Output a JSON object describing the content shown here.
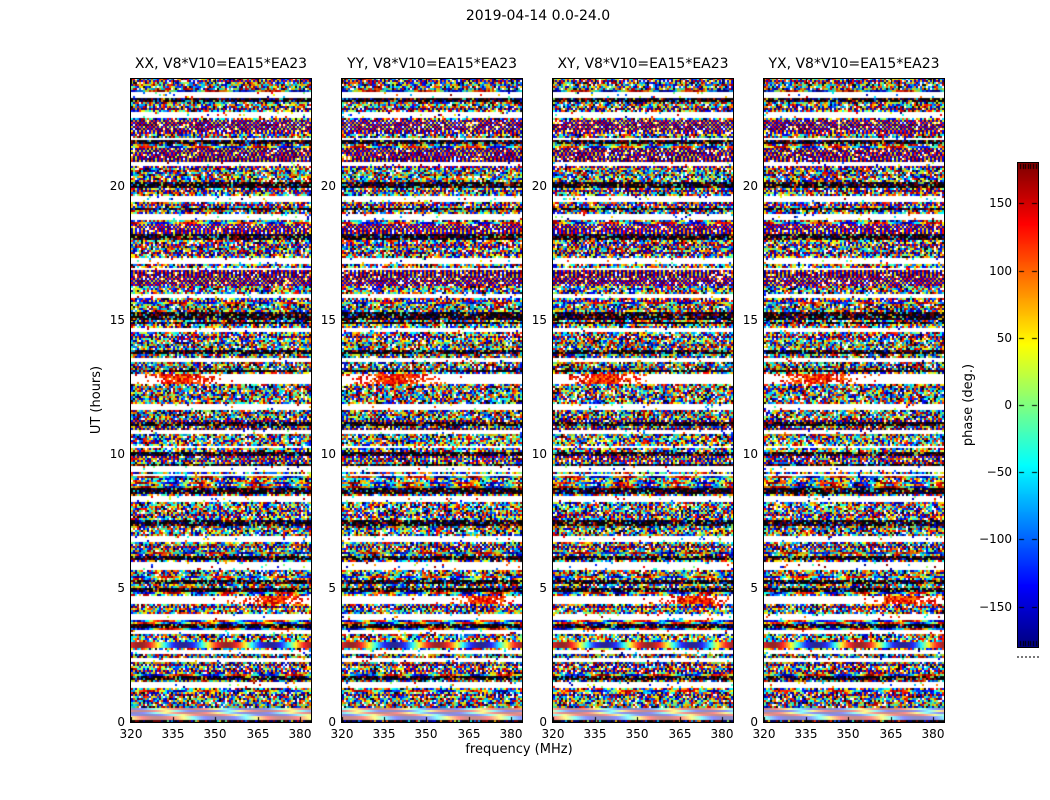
{
  "figure": {
    "suptitle": "2019-04-14 0.0-24.0",
    "xlabel": "frequency (MHz)",
    "ylabel": "UT (hours)",
    "colorbar_label": "phase (deg.)",
    "colors": {
      "background": "#ffffff",
      "text": "#000000"
    }
  },
  "chart_data": {
    "type": "heatmap",
    "title": "2019-04-14 0.0-24.0",
    "description": "Visibility phase vs frequency and time for baseline V8*V10=EA15*EA23; four polarization panels of random-looking phase noise with time-aligned flagged (white) and dark bands.",
    "panels": [
      {
        "pol": "XX",
        "title": "XX, V8*V10=EA15*EA23"
      },
      {
        "pol": "YY",
        "title": "YY, V8*V10=EA15*EA23"
      },
      {
        "pol": "XY",
        "title": "XY, V8*V10=EA15*EA23"
      },
      {
        "pol": "YX",
        "title": "YX, V8*V10=EA15*EA23"
      }
    ],
    "x_axis": {
      "label": "frequency (MHz)",
      "ticks": [
        320,
        335,
        350,
        365,
        380
      ],
      "range": [
        320,
        384
      ]
    },
    "y_axis": {
      "label": "UT (hours)",
      "ticks": [
        0,
        5,
        10,
        15,
        20
      ],
      "range": [
        0,
        24
      ]
    },
    "colorbar": {
      "label": "phase (deg.)",
      "ticks": [
        150,
        100,
        50,
        0,
        -50,
        -100,
        -150
      ],
      "range": [
        -180,
        180
      ],
      "colormap": "jet"
    },
    "bands": [
      {
        "ut": 23.4,
        "h": 0.1,
        "type": "white"
      },
      {
        "ut": 23.18,
        "h": 0.08,
        "type": "dark"
      },
      {
        "ut": 22.6,
        "h": 0.12,
        "type": "white"
      },
      {
        "ut": 22.2,
        "h": 0.4,
        "type": "fine"
      },
      {
        "ut": 21.62,
        "h": 0.1,
        "type": "dark"
      },
      {
        "ut": 21.15,
        "h": 0.45,
        "type": "fine"
      },
      {
        "ut": 20.8,
        "h": 0.12,
        "type": "white"
      },
      {
        "ut": 20.0,
        "h": 0.14,
        "type": "dark"
      },
      {
        "ut": 19.5,
        "h": 0.12,
        "type": "white"
      },
      {
        "ut": 18.8,
        "h": 0.12,
        "type": "white"
      },
      {
        "ut": 18.35,
        "h": 0.3,
        "type": "fine"
      },
      {
        "ut": 18.08,
        "h": 0.1,
        "type": "dark"
      },
      {
        "ut": 17.2,
        "h": 0.12,
        "type": "white"
      },
      {
        "ut": 16.55,
        "h": 0.5,
        "type": "fine"
      },
      {
        "ut": 15.9,
        "h": 0.1,
        "type": "white"
      },
      {
        "ut": 15.1,
        "h": 0.22,
        "type": "dark"
      },
      {
        "ut": 14.6,
        "h": 0.12,
        "type": "white"
      },
      {
        "ut": 13.8,
        "h": 0.12,
        "type": "dark"
      },
      {
        "ut": 13.5,
        "h": 0.12,
        "type": "white"
      },
      {
        "ut": 12.78,
        "h": 0.26,
        "type": "streak-left"
      },
      {
        "ut": 11.72,
        "h": 0.14,
        "type": "white"
      },
      {
        "ut": 11.1,
        "h": 0.08,
        "type": "dark"
      },
      {
        "ut": 10.82,
        "h": 0.08,
        "type": "white"
      },
      {
        "ut": 9.97,
        "h": 0.08,
        "type": "dark"
      },
      {
        "ut": 9.4,
        "h": 0.14,
        "type": "white"
      },
      {
        "ut": 8.66,
        "h": 0.08,
        "type": "dark"
      },
      {
        "ut": 8.3,
        "h": 0.14,
        "type": "white"
      },
      {
        "ut": 7.4,
        "h": 0.14,
        "type": "dark"
      },
      {
        "ut": 6.8,
        "h": 0.14,
        "type": "white"
      },
      {
        "ut": 6.12,
        "h": 0.08,
        "type": "dark"
      },
      {
        "ut": 5.86,
        "h": 0.12,
        "type": "white"
      },
      {
        "ut": 5.2,
        "h": 0.1,
        "type": "dark"
      },
      {
        "ut": 4.9,
        "h": 0.1,
        "type": "dark"
      },
      {
        "ut": 4.55,
        "h": 0.24,
        "type": "streak-right"
      },
      {
        "ut": 3.92,
        "h": 0.12,
        "type": "white"
      },
      {
        "ut": 3.6,
        "h": 0.08,
        "type": "dark"
      },
      {
        "ut": 3.36,
        "h": 0.12,
        "type": "white"
      },
      {
        "ut": 2.87,
        "h": 0.16,
        "type": "rainbow"
      },
      {
        "ut": 2.61,
        "h": 0.1,
        "type": "white"
      },
      {
        "ut": 2.31,
        "h": 0.12,
        "type": "white"
      },
      {
        "ut": 1.64,
        "h": 0.08,
        "type": "dark"
      },
      {
        "ut": 1.38,
        "h": 0.12,
        "type": "white"
      },
      {
        "ut": 0.28,
        "h": 0.4,
        "type": "pale"
      }
    ]
  }
}
